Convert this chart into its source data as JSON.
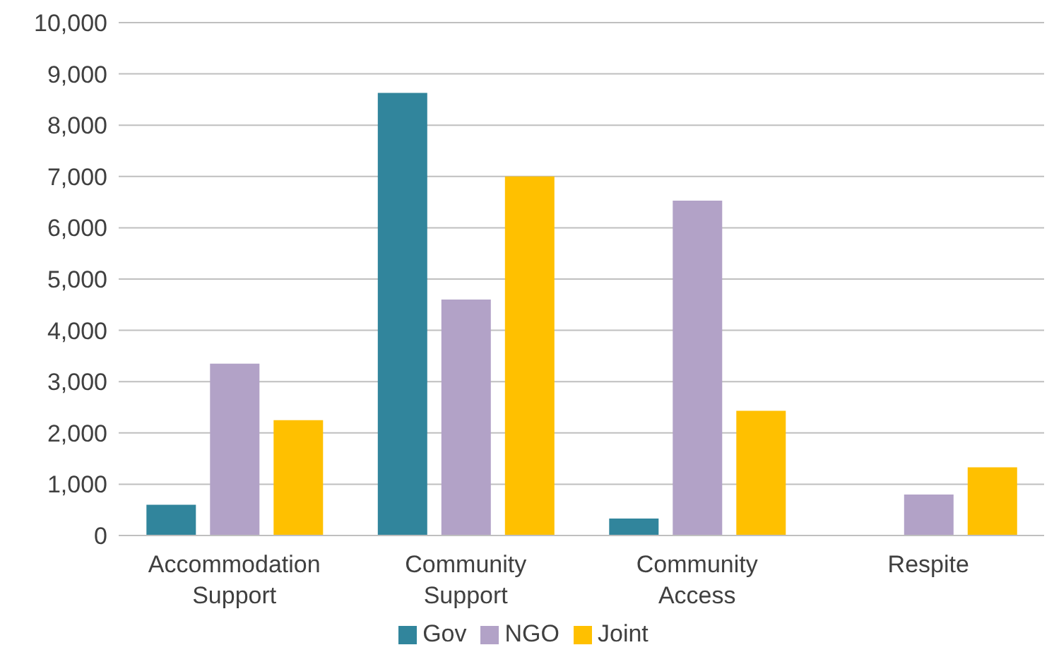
{
  "chart_data": {
    "type": "bar",
    "categories": [
      "Accommodation Support",
      "Community Support",
      "Community Access",
      "Respite"
    ],
    "series": [
      {
        "name": "Gov",
        "color": "#31859c",
        "values": [
          600,
          8630,
          330,
          0
        ]
      },
      {
        "name": "NGO",
        "color": "#b2a2c7",
        "values": [
          3350,
          4600,
          6530,
          800
        ]
      },
      {
        "name": "Joint",
        "color": "#ffc000",
        "values": [
          2250,
          7000,
          2430,
          1330
        ]
      }
    ],
    "ylim": [
      0,
      10000
    ],
    "yticks": [
      0,
      {
        "value": 1000,
        "label": "1,000"
      },
      {
        "value": 2000,
        "label": "2,000"
      },
      {
        "value": 3000,
        "label": "3,000"
      },
      {
        "value": 4000,
        "label": "4,000"
      },
      {
        "value": 5000,
        "label": "5,000"
      },
      {
        "value": 6000,
        "label": "6,000"
      },
      {
        "value": 7000,
        "label": "7,000"
      },
      {
        "value": 8000,
        "label": "8,000"
      },
      {
        "value": 9000,
        "label": "9,000"
      },
      {
        "value": 10000,
        "label": "10,000"
      }
    ],
    "grid": "y",
    "legend": "bottom"
  }
}
